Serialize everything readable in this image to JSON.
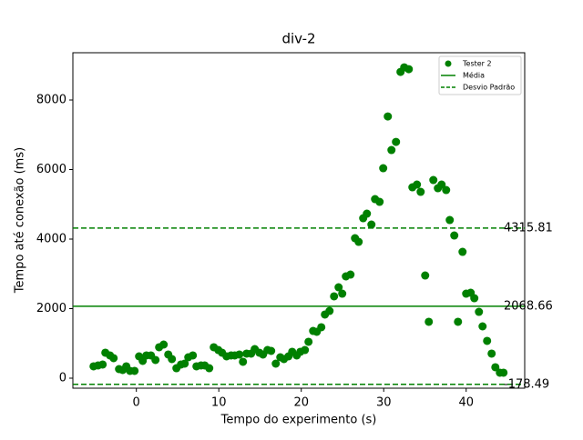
{
  "chart_data": {
    "type": "scatter",
    "title": "div-2",
    "x_label": "Tempo do experimento (s)",
    "y_label": "Tempo até conexão (ms)",
    "xlim": [
      -7.7,
      47.1
    ],
    "ylim": [
      -288,
      9360
    ],
    "xticks": [
      0,
      10,
      20,
      30,
      40
    ],
    "yticks": [
      0,
      2000,
      4000,
      6000,
      8000
    ],
    "legend_position": "upper right",
    "series": [
      {
        "name": "Tester 2",
        "color": "#008000",
        "x": [
          -5.19,
          -4.64,
          -4.09,
          -3.76,
          -3.2,
          -2.76,
          -2.1,
          -1.66,
          -1.22,
          -0.77,
          -0.22,
          0.33,
          0.77,
          1.22,
          1.77,
          2.32,
          2.76,
          3.31,
          3.87,
          4.31,
          4.86,
          5.41,
          5.86,
          6.3,
          6.85,
          7.29,
          7.85,
          8.29,
          8.84,
          9.39,
          9.94,
          10.39,
          10.94,
          11.49,
          11.93,
          12.49,
          12.93,
          13.37,
          13.92,
          14.36,
          14.92,
          15.36,
          15.91,
          16.35,
          16.91,
          17.46,
          17.9,
          18.45,
          18.9,
          19.45,
          19.89,
          20.44,
          20.88,
          21.44,
          21.88,
          22.43,
          22.87,
          23.43,
          23.98,
          24.53,
          24.97,
          25.41,
          25.97,
          26.52,
          26.96,
          27.51,
          27.96,
          28.51,
          28.95,
          29.5,
          29.94,
          30.5,
          30.94,
          31.49,
          32.04,
          32.49,
          33.04,
          33.48,
          34.03,
          34.48,
          35.03,
          35.47,
          36.02,
          36.57,
          37.02,
          37.57,
          38.01,
          38.56,
          39.01,
          39.56,
          40.0,
          40.55,
          40.99,
          41.55,
          41.99,
          42.54,
          43.09,
          43.54,
          44.09,
          44.53
        ],
        "values": [
          340,
          366,
          392,
          732,
          654,
          575,
          261,
          235,
          340,
          209,
          209,
          627,
          497,
          654,
          654,
          523,
          889,
          967,
          680,
          549,
          287,
          392,
          418,
          601,
          654,
          340,
          366,
          366,
          287,
          889,
          810,
          732,
          627,
          654,
          654,
          680,
          471,
          706,
          706,
          836,
          732,
          680,
          810,
          784,
          418,
          601,
          549,
          627,
          758,
          654,
          758,
          810,
          1046,
          1359,
          1333,
          1464,
          1830,
          1934,
          2353,
          2614,
          2431,
          2928,
          2980,
          4026,
          3921,
          4601,
          4731,
          4418,
          5150,
          5071,
          6038,
          7528,
          6561,
          6796,
          8809,
          8939,
          8887,
          5489,
          5568,
          5359,
          2954,
          1621,
          5699,
          5463,
          5568,
          5411,
          4548,
          4104,
          1621,
          3633,
          2431,
          2457,
          2300,
          1908,
          1490,
          1072,
          706,
          314,
          157,
          157
        ]
      },
      {
        "name": "Média",
        "color": "#008000",
        "value": 2068.66
      },
      {
        "name": "Desvio Padrão",
        "color": "#008000",
        "dashed": true,
        "values": [
          4315.81,
          -178.49
        ]
      }
    ]
  }
}
